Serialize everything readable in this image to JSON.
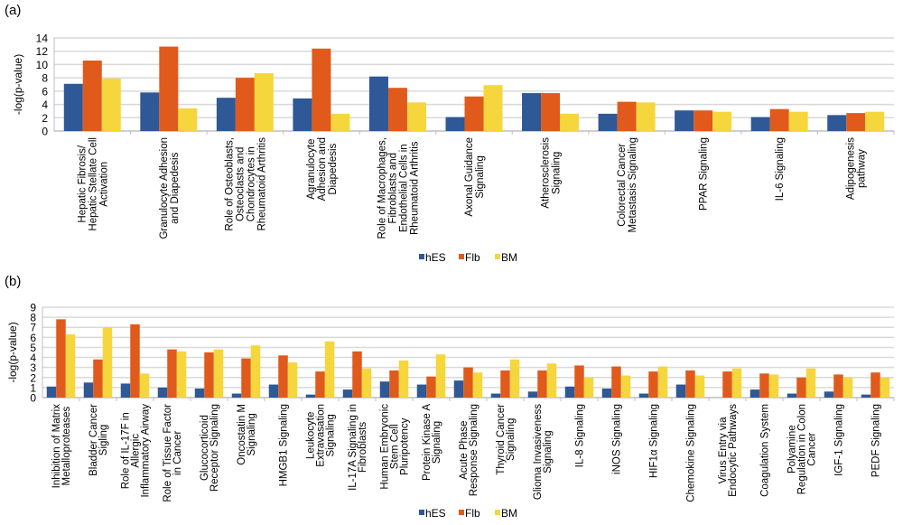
{
  "colors": {
    "hES": "#2e5896",
    "Flb": "#e05a1c",
    "BM": "#f5d63d",
    "grid": "#d9d9d9",
    "axis": "#bfbfbf"
  },
  "chart_data": [
    {
      "panel": "(a)",
      "type": "bar",
      "title": "",
      "xlabel": "",
      "ylabel": "-log(p-value)",
      "ylim": [
        0,
        14
      ],
      "yticks": [
        0,
        2,
        4,
        6,
        8,
        10,
        12,
        14
      ],
      "grid": true,
      "legend": "bottom-center",
      "categories": [
        [
          "Hepatic Fibrosis/",
          "Hepatic Stellate Cell",
          "Activation"
        ],
        [
          "Granulocyte Adhesion",
          "and Diapedesis"
        ],
        [
          "Role of Osteoblasts,",
          "Osteoclasts and",
          "Chondrocytes in",
          "Rheumatoid Arthritis"
        ],
        [
          "Agranulocyte",
          "Adhesion and",
          "Diapedesis"
        ],
        [
          "Role of Macrophages,",
          "Fibroblasts and",
          "Endothelial Cells in",
          "Rheumatoid Arthritis"
        ],
        [
          "Axonal Guidance",
          "Signaling"
        ],
        [
          "Atherosclerosis",
          "Signaling"
        ],
        [
          "Colorectal Cancer",
          "Metastasis Signaling"
        ],
        [
          "PPAR Signaling"
        ],
        [
          "IL-6 Signaling"
        ],
        [
          "Adipogenesis",
          "pathway"
        ]
      ],
      "series": [
        {
          "name": "hES",
          "values": [
            7.1,
            5.8,
            5.0,
            4.9,
            8.2,
            2.1,
            5.7,
            2.6,
            3.1,
            2.1,
            2.4
          ]
        },
        {
          "name": "Flb",
          "values": [
            10.6,
            12.7,
            8.0,
            12.4,
            6.5,
            5.2,
            5.7,
            4.4,
            3.1,
            3.3,
            2.7
          ]
        },
        {
          "name": "BM",
          "values": [
            7.9,
            3.4,
            8.7,
            2.6,
            4.3,
            6.9,
            2.6,
            4.3,
            2.9,
            2.9,
            2.9
          ]
        }
      ]
    },
    {
      "panel": "(b)",
      "type": "bar",
      "title": "",
      "xlabel": "",
      "ylabel": "-log(p-value)",
      "ylim": [
        0,
        9
      ],
      "yticks": [
        0,
        1,
        2,
        3,
        4,
        5,
        6,
        7,
        8,
        9
      ],
      "grid": true,
      "legend": "bottom-center",
      "categories": [
        [
          "Inhibition of Matrix",
          "Metalloproteases"
        ],
        [
          "Bladder Cancer",
          "Sigling"
        ],
        [
          "Role of IL-17F in",
          "Allergic",
          "Inflammatory Airway"
        ],
        [
          "Role of Tissue Factor",
          "in Cancer"
        ],
        [
          "Glucocorticoid",
          "Receptor Signaling"
        ],
        [
          "Oncostatin M",
          "Signaling"
        ],
        [
          "HMGB1 Signaling"
        ],
        [
          "Leukocyte",
          "Extravasation",
          "Signaling"
        ],
        [
          "IL-17A Signaling in",
          "Fibroblasts"
        ],
        [
          "Human Embryonic",
          "Stem Cell",
          "Pluripotency"
        ],
        [
          "Protein Kinase A",
          "Signaling"
        ],
        [
          "Acute Phase",
          "Response Signaling"
        ],
        [
          "Thyroid Cancer",
          "Signaling"
        ],
        [
          "Glioma Invasiveness",
          "Signaling"
        ],
        [
          "IL-8 Signaling"
        ],
        [
          "iNOS Signaling"
        ],
        [
          "HIF1α Signaling"
        ],
        [
          "Chemokine Signaling"
        ],
        [
          "Virus Entry via",
          "Endocytic Pathways"
        ],
        [
          "Coagulation System"
        ],
        [
          "Polyamine",
          "Regulation in Colon",
          "Cancer"
        ],
        [
          "IGF-1 Signaling"
        ],
        [
          "PEDF Signaling"
        ]
      ],
      "series": [
        {
          "name": "hES",
          "values": [
            1.1,
            1.5,
            1.4,
            1.0,
            0.9,
            0.4,
            1.3,
            0.3,
            0.8,
            1.6,
            1.3,
            1.7,
            0.4,
            0.6,
            1.1,
            0.9,
            0.4,
            1.3,
            0.0,
            0.8,
            0.4,
            0.6,
            0.3
          ]
        },
        {
          "name": "Flb",
          "values": [
            7.8,
            3.8,
            7.3,
            4.8,
            4.5,
            3.9,
            4.2,
            2.6,
            4.6,
            2.7,
            2.1,
            3.0,
            2.7,
            2.7,
            3.2,
            3.1,
            2.6,
            2.7,
            2.6,
            2.4,
            2.0,
            2.3,
            2.5
          ]
        },
        {
          "name": "BM",
          "values": [
            6.3,
            7.0,
            2.4,
            4.6,
            4.8,
            5.2,
            3.5,
            5.6,
            2.9,
            3.7,
            4.3,
            2.5,
            3.8,
            3.4,
            2.0,
            2.2,
            3.1,
            2.2,
            2.9,
            2.3,
            2.9,
            2.0,
            2.0
          ]
        }
      ]
    }
  ]
}
